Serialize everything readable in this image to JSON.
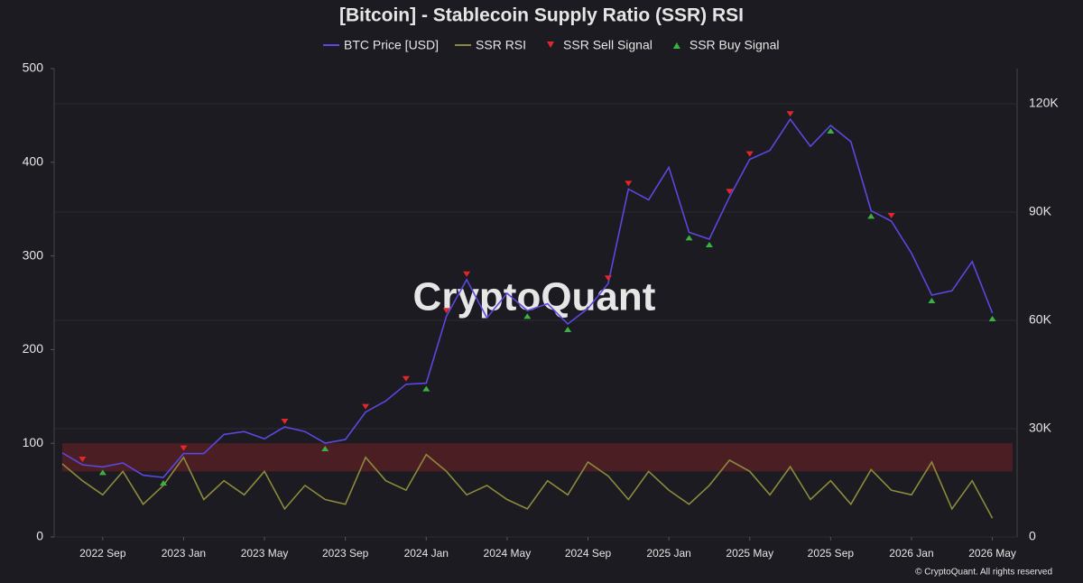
{
  "chart_data": {
    "type": "line",
    "title": "[Bitcoin] - Stablecoin Supply Ratio (SSR) RSI",
    "watermark": "CryptoQuant",
    "footer": "© CryptoQuant. All rights reserved",
    "x": [
      "2022-07",
      "2022-08",
      "2022-09",
      "2022-10",
      "2022-11",
      "2022-12",
      "2023-01",
      "2023-02",
      "2023-03",
      "2023-04",
      "2023-05",
      "2023-06",
      "2023-07",
      "2023-08",
      "2023-09",
      "2023-10",
      "2023-11",
      "2023-12",
      "2024-01",
      "2024-02",
      "2024-03",
      "2024-04",
      "2024-05",
      "2024-06",
      "2024-07",
      "2024-08",
      "2024-09",
      "2024-10",
      "2024-11",
      "2024-12",
      "2025-01",
      "2025-02",
      "2025-03",
      "2025-04",
      "2025-05",
      "2025-06",
      "2025-07",
      "2025-08",
      "2025-09",
      "2025-10",
      "2025-11",
      "2025-12",
      "2026-01",
      "2026-02",
      "2026-03",
      "2026-04",
      "2026-05"
    ],
    "xlim": [
      "2022-07",
      "2026-06"
    ],
    "xticks": [
      {
        "value": "2022-09",
        "label": "2022 Sep"
      },
      {
        "value": "2023-01",
        "label": "2023 Jan"
      },
      {
        "value": "2023-05",
        "label": "2023 May"
      },
      {
        "value": "2023-09",
        "label": "2023 Sep"
      },
      {
        "value": "2024-01",
        "label": "2024 Jan"
      },
      {
        "value": "2024-05",
        "label": "2024 May"
      },
      {
        "value": "2024-09",
        "label": "2024 Sep"
      },
      {
        "value": "2025-01",
        "label": "2025 Jan"
      },
      {
        "value": "2025-05",
        "label": "2025 May"
      },
      {
        "value": "2025-09",
        "label": "2025 Sep"
      },
      {
        "value": "2026-01",
        "label": "2026 Jan"
      },
      {
        "value": "2026-05",
        "label": "2026 May"
      }
    ],
    "ylim": [
      0,
      500
    ],
    "yticks": [
      0,
      100,
      200,
      300,
      400,
      500
    ],
    "y2lim": [
      0,
      129750
    ],
    "y2ticks": [
      0,
      {
        "value": 30000,
        "label": "30K"
      },
      {
        "value": 60000,
        "label": "60K"
      },
      {
        "value": 90000,
        "label": "90K"
      },
      {
        "value": 120000,
        "label": "120K"
      }
    ],
    "overbought_zone": [
      70,
      100
    ],
    "series": [
      {
        "name": "BTC Price [USD]",
        "color": "#5a48e0",
        "axis": "y2",
        "style": "line",
        "values": [
          23300,
          20000,
          19400,
          20500,
          17100,
          16500,
          23100,
          23100,
          28400,
          29200,
          27200,
          30500,
          29200,
          26000,
          27000,
          34600,
          37700,
          42300,
          42600,
          61200,
          71300,
          60700,
          67500,
          62700,
          64600,
          59000,
          63300,
          70200,
          96400,
          93400,
          102400,
          84400,
          82500,
          94200,
          104600,
          107100,
          115700,
          108200,
          114000,
          109500,
          90400,
          87500,
          78600,
          67000,
          68200,
          76300,
          62000
        ]
      },
      {
        "name": "SSR RSI",
        "color": "#8c8a3c",
        "style": "line",
        "values": [
          78,
          60,
          45,
          70,
          35,
          55,
          85,
          40,
          60,
          45,
          70,
          30,
          55,
          40,
          35,
          85,
          60,
          50,
          88,
          70,
          45,
          55,
          40,
          30,
          60,
          45,
          80,
          65,
          40,
          70,
          50,
          35,
          55,
          82,
          70,
          45,
          75,
          40,
          60,
          35,
          72,
          50,
          45,
          80,
          30,
          60,
          20
        ]
      },
      {
        "name": "SSR Sell Signal",
        "color": "#e0282c",
        "axis": "y2",
        "style": "down",
        "values": [
          null,
          20000,
          null,
          null,
          null,
          null,
          23100,
          null,
          null,
          null,
          null,
          30500,
          null,
          null,
          null,
          34600,
          null,
          42300,
          null,
          61200,
          71300,
          null,
          null,
          null,
          null,
          null,
          null,
          70200,
          96400,
          null,
          null,
          null,
          null,
          94200,
          104600,
          null,
          115700,
          null,
          null,
          null,
          null,
          87500,
          null,
          null,
          null,
          null,
          null
        ]
      },
      {
        "name": "SSR Buy Signal",
        "color": "#3cb043",
        "axis": "y2",
        "style": "up",
        "values": [
          null,
          null,
          19400,
          null,
          null,
          16500,
          null,
          null,
          null,
          null,
          null,
          null,
          null,
          26000,
          null,
          null,
          null,
          null,
          42600,
          null,
          null,
          null,
          null,
          62700,
          null,
          59000,
          null,
          null,
          null,
          null,
          null,
          84400,
          82500,
          null,
          null,
          null,
          null,
          null,
          114000,
          null,
          90400,
          null,
          null,
          67000,
          null,
          null,
          62000
        ]
      }
    ]
  }
}
